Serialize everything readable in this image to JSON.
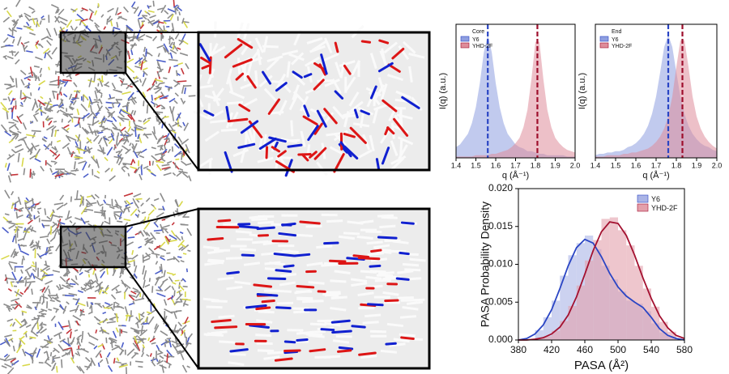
{
  "chart_data": [
    {
      "type": "line",
      "ylabel": "I(q) (a.u.)",
      "xlabel": "q (Å⁻¹)",
      "legend_title": "Core",
      "legend": "upper left",
      "xlim": [
        1.4,
        2.0
      ],
      "xticks": [
        {
          "value": 1.4,
          "label": "1.4"
        },
        1.5,
        1.6,
        1.7,
        1.8,
        1.9,
        {
          "value": 2.0,
          "label": "2.0"
        }
      ],
      "ylim": [
        0,
        1
      ],
      "x": [
        1.4,
        1.42,
        1.44,
        1.46,
        1.48,
        1.5,
        1.52,
        1.54,
        1.56,
        1.58,
        1.6,
        1.62,
        1.64,
        1.66,
        1.68,
        1.7,
        1.72,
        1.74,
        1.76,
        1.78,
        1.8,
        1.82,
        1.84,
        1.86,
        1.88,
        1.9,
        1.92,
        1.94,
        1.96,
        1.98,
        2.0
      ],
      "series": [
        {
          "name": "Y6",
          "color": "#8e9ee0",
          "line_color": "#2a45c4",
          "peak": 1.56,
          "values": [
            0.08,
            0.1,
            0.14,
            0.18,
            0.26,
            0.38,
            0.56,
            0.79,
            0.92,
            0.79,
            0.56,
            0.38,
            0.26,
            0.18,
            0.14,
            0.1,
            0.08,
            0.07,
            0.05,
            0.05,
            0.04,
            0.03,
            0.03,
            0.02,
            0.02,
            0.02,
            0.02,
            0.02,
            0.01,
            0.01,
            0.01
          ]
        },
        {
          "name": "YHD-2F",
          "color": "#de8d9a",
          "line_color": "#9e0e2c",
          "peak": 1.81,
          "values": [
            0.01,
            0.01,
            0.01,
            0.01,
            0.01,
            0.02,
            0.02,
            0.02,
            0.02,
            0.03,
            0.03,
            0.04,
            0.05,
            0.06,
            0.08,
            0.11,
            0.15,
            0.23,
            0.36,
            0.59,
            0.87,
            0.87,
            0.59,
            0.36,
            0.23,
            0.15,
            0.11,
            0.08,
            0.06,
            0.05,
            0.04
          ]
        }
      ]
    },
    {
      "type": "line",
      "ylabel": "I(q) (a.u.)",
      "xlabel": "q (Å⁻¹)",
      "legend_title": "End",
      "legend": "upper left",
      "xlim": [
        1.4,
        2.0
      ],
      "xticks": [
        {
          "value": 1.4,
          "label": "1.4"
        },
        1.5,
        1.6,
        1.7,
        1.8,
        1.9,
        {
          "value": 2.0,
          "label": "2.0"
        }
      ],
      "ylim": [
        0,
        1
      ],
      "x": [
        1.4,
        1.42,
        1.44,
        1.46,
        1.48,
        1.5,
        1.52,
        1.54,
        1.56,
        1.58,
        1.6,
        1.62,
        1.64,
        1.66,
        1.68,
        1.7,
        1.72,
        1.74,
        1.76,
        1.78,
        1.8,
        1.82,
        1.84,
        1.86,
        1.88,
        1.9,
        1.92,
        1.94,
        1.96,
        1.98,
        2.0
      ],
      "series": [
        {
          "name": "Y6",
          "color": "#8e9ee0",
          "line_color": "#2a45c4",
          "peak": 1.76,
          "values": [
            0.02,
            0.03,
            0.03,
            0.04,
            0.04,
            0.05,
            0.05,
            0.06,
            0.08,
            0.09,
            0.11,
            0.14,
            0.18,
            0.24,
            0.33,
            0.46,
            0.64,
            0.83,
            0.92,
            0.83,
            0.64,
            0.46,
            0.33,
            0.24,
            0.18,
            0.14,
            0.11,
            0.09,
            0.08,
            0.06,
            0.05
          ]
        },
        {
          "name": "YHD-2F",
          "color": "#de8d9a",
          "line_color": "#9e0e2c",
          "peak": 1.83,
          "values": [
            0.01,
            0.01,
            0.01,
            0.02,
            0.02,
            0.02,
            0.02,
            0.03,
            0.03,
            0.04,
            0.04,
            0.05,
            0.06,
            0.07,
            0.09,
            0.12,
            0.16,
            0.22,
            0.31,
            0.46,
            0.68,
            0.88,
            0.88,
            0.68,
            0.46,
            0.31,
            0.22,
            0.16,
            0.12,
            0.09,
            0.07
          ]
        }
      ]
    },
    {
      "type": "histogram",
      "ylabel": "PASA Probability Density",
      "xlabel": "PASA (Å²)",
      "legend": "upper right",
      "xlim": [
        380,
        580
      ],
      "xticks": [
        380,
        420,
        460,
        500,
        540,
        580
      ],
      "ylim": [
        0,
        0.02
      ],
      "yticks": [
        {
          "value": 0,
          "label": "0.000"
        },
        {
          "value": 0.005,
          "label": "0.005"
        },
        {
          "value": 0.01,
          "label": "0.010"
        },
        {
          "value": 0.015,
          "label": "0.015"
        },
        {
          "value": 0.02,
          "label": "0.020"
        }
      ],
      "bins": [
        400,
        410,
        420,
        430,
        440,
        450,
        460,
        470,
        480,
        490,
        500,
        510,
        520,
        530,
        540,
        550,
        560,
        570
      ],
      "kde_x": [
        380,
        390,
        400,
        410,
        420,
        430,
        440,
        450,
        460,
        470,
        480,
        490,
        500,
        510,
        520,
        530,
        540,
        550,
        560,
        570,
        580
      ],
      "series": [
        {
          "name": "Y6",
          "color": "#aab4e6",
          "line_color": "#2a45c4",
          "values": [
            0.0013,
            0.003,
            0.0052,
            0.0085,
            0.0112,
            0.0128,
            0.0138,
            0.012,
            0.0098,
            0.008,
            0.0064,
            0.0052,
            0.0048,
            0.0038,
            0.0022,
            0.001,
            0.0004
          ],
          "kde": [
            0,
            0.0002,
            0.0008,
            0.002,
            0.004,
            0.0068,
            0.0098,
            0.0122,
            0.0133,
            0.0128,
            0.011,
            0.0088,
            0.007,
            0.0058,
            0.005,
            0.0043,
            0.003,
            0.0015,
            0.0006,
            0.0002,
            0
          ]
        },
        {
          "name": "YHD-2F",
          "color": "#e3a0ab",
          "line_color": "#a3102f",
          "values": [
            0.0002,
            0.0005,
            0.0012,
            0.0025,
            0.0045,
            0.0072,
            0.0105,
            0.0132,
            0.016,
            0.0162,
            0.0145,
            0.0125,
            0.0098,
            0.0068,
            0.0044,
            0.0024,
            0.0011
          ],
          "kde": [
            0,
            0,
            0.0001,
            0.0003,
            0.0008,
            0.0017,
            0.0033,
            0.0057,
            0.0087,
            0.0118,
            0.0143,
            0.0156,
            0.0154,
            0.0138,
            0.0112,
            0.0082,
            0.0055,
            0.0032,
            0.0016,
            0.0006,
            0.0002
          ]
        }
      ]
    }
  ]
}
